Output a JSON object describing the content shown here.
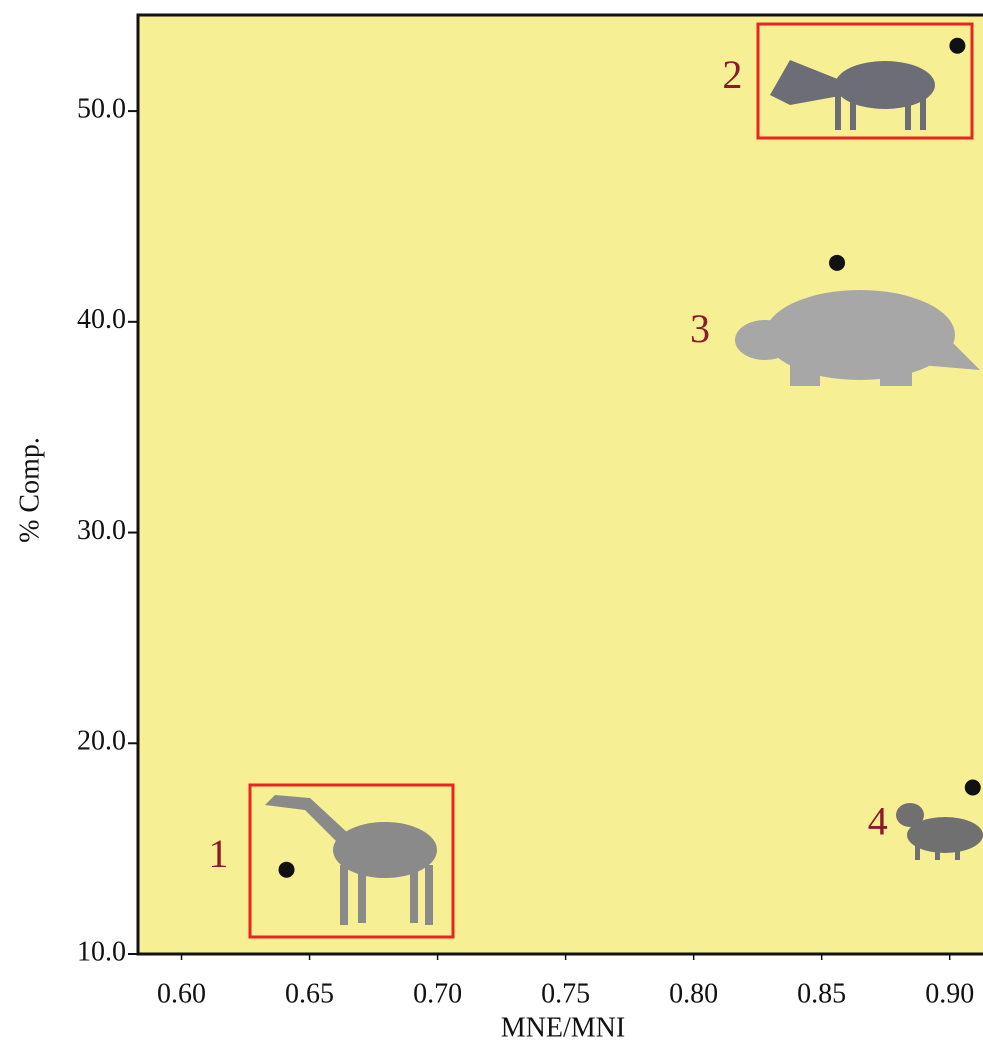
{
  "chart_data": {
    "type": "scatter",
    "x_label": "MNE/MNI",
    "y_label": "% Comp.",
    "xlim": [
      0.583,
      0.913
    ],
    "ylim": [
      10,
      54.56
    ],
    "xticks": [
      {
        "value": 0.6,
        "label": "0.60"
      },
      0.65,
      {
        "value": 0.7,
        "label": "0.70"
      },
      0.75,
      {
        "value": 0.8,
        "label": "0.80"
      },
      0.85,
      {
        "value": 0.9,
        "label": "0.90"
      }
    ],
    "yticks": [
      {
        "value": 10,
        "label": "10.0"
      },
      {
        "value": 20,
        "label": "20.0"
      },
      {
        "value": 30,
        "label": "30.0"
      },
      {
        "value": 40,
        "label": "40.0"
      },
      {
        "value": 50,
        "label": "50.0"
      }
    ],
    "background": "#f6ef93",
    "color": "#111111",
    "x": [
      0.641,
      0.903,
      0.856,
      0.909
    ],
    "values": [
      14.0,
      53.1,
      42.8,
      17.9
    ],
    "point_labels": [
      "1",
      "2",
      "3",
      "4"
    ]
  }
}
